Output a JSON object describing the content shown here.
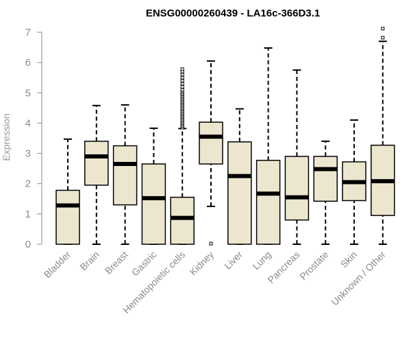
{
  "colors": {
    "box_fill": "#ede6cf",
    "stroke": "#000000",
    "axis": "#8a8a8a",
    "label": "#8a8a8a"
  },
  "chart_data": {
    "type": "boxplot",
    "title": "ENSG00000260439 - LA16c-366D3.1",
    "xlabel": "",
    "ylabel": "Expression",
    "ylim": [
      0,
      7
    ],
    "yticks": [
      "0",
      "1",
      "2",
      "3",
      "4",
      "5",
      "6",
      "7"
    ],
    "categories": [
      "Bladder",
      "Brain",
      "Breast",
      "Gastric",
      "Hematopoietic cells",
      "Kidney",
      "Liver",
      "Lung",
      "Pancreas",
      "Prostate",
      "Skin",
      "Unknown / Other"
    ],
    "boxes": [
      {
        "name": "Bladder",
        "whisker_low": 0,
        "q1": 0,
        "median": 1.28,
        "q3": 1.78,
        "whisker_high": 3.47,
        "outliers": []
      },
      {
        "name": "Brain",
        "whisker_low": 0,
        "q1": 1.95,
        "median": 2.9,
        "q3": 3.4,
        "whisker_high": 4.58,
        "outliers": []
      },
      {
        "name": "Breast",
        "whisker_low": 0,
        "q1": 1.3,
        "median": 2.65,
        "q3": 3.25,
        "whisker_high": 4.6,
        "outliers": []
      },
      {
        "name": "Gastric",
        "whisker_low": 0,
        "q1": 0,
        "median": 1.52,
        "q3": 2.65,
        "whisker_high": 3.83,
        "outliers": []
      },
      {
        "name": "Hematopoietic cells",
        "whisker_low": 0,
        "q1": 0,
        "median": 0.87,
        "q3": 1.55,
        "whisker_high": 3.82,
        "outliers": [
          3.85,
          3.9,
          3.95,
          4.0,
          4.05,
          4.1,
          4.15,
          4.2,
          4.25,
          4.3,
          4.35,
          4.4,
          4.45,
          4.5,
          4.55,
          4.6,
          4.65,
          4.7,
          4.75,
          4.8,
          4.85,
          4.9,
          4.95,
          5.0,
          5.05,
          5.1,
          5.2,
          5.3,
          5.4,
          5.5,
          5.6,
          5.7,
          5.78
        ]
      },
      {
        "name": "Kidney",
        "whisker_low": 1.25,
        "q1": 2.65,
        "median": 3.55,
        "q3": 4.03,
        "whisker_high": 6.05,
        "outliers": [
          0.02
        ]
      },
      {
        "name": "Liver",
        "whisker_low": 0,
        "q1": 0,
        "median": 2.25,
        "q3": 3.38,
        "whisker_high": 4.47,
        "outliers": []
      },
      {
        "name": "Lung",
        "whisker_low": 0,
        "q1": 0,
        "median": 1.67,
        "q3": 2.77,
        "whisker_high": 6.48,
        "outliers": []
      },
      {
        "name": "Pancreas",
        "whisker_low": 0,
        "q1": 0.8,
        "median": 1.55,
        "q3": 2.9,
        "whisker_high": 5.75,
        "outliers": []
      },
      {
        "name": "Prostate",
        "whisker_low": 0,
        "q1": 1.42,
        "median": 2.48,
        "q3": 2.9,
        "whisker_high": 3.4,
        "outliers": []
      },
      {
        "name": "Skin",
        "whisker_low": 0,
        "q1": 1.44,
        "median": 2.05,
        "q3": 2.72,
        "whisker_high": 4.1,
        "outliers": []
      },
      {
        "name": "Unknown / Other",
        "whisker_low": 0,
        "q1": 0.95,
        "median": 2.08,
        "q3": 3.27,
        "whisker_high": 6.7,
        "outliers": [
          6.82,
          7.12
        ]
      }
    ]
  }
}
